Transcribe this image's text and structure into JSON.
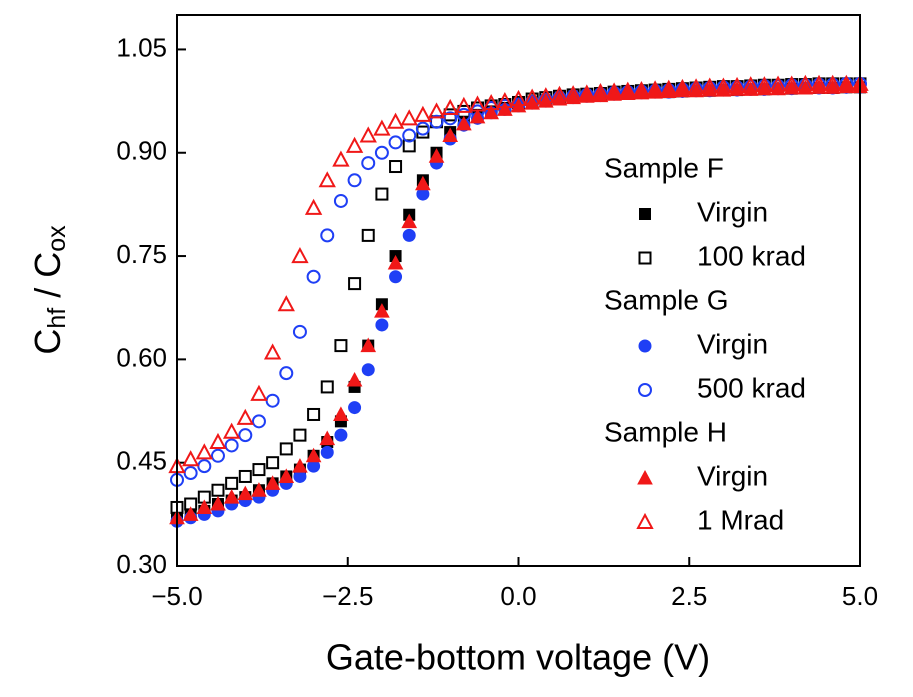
{
  "chart_data": {
    "type": "scatter",
    "xlabel": "Gate-bottom voltage (V)",
    "ylabel": [
      "C",
      "hf",
      " / C",
      "ox"
    ],
    "xlim": [
      -5,
      5
    ],
    "ylim": [
      0.3,
      1.1
    ],
    "xticks": [
      {
        "value": -5,
        "label": "−5.0"
      },
      {
        "value": -2.5,
        "label": "−2.5"
      },
      {
        "value": 0,
        "label": "0.0"
      },
      {
        "value": 2.5,
        "label": "2.5"
      },
      {
        "value": 5,
        "label": "5.0"
      }
    ],
    "yticks": [
      {
        "value": 0.3,
        "label": "0.30"
      },
      {
        "value": 0.45,
        "label": "0.45"
      },
      {
        "value": 0.6,
        "label": "0.60"
      },
      {
        "value": 0.75,
        "label": "0.75"
      },
      {
        "value": 0.9,
        "label": "0.90"
      },
      {
        "value": 1.05,
        "label": "1.05"
      }
    ],
    "x": [
      -5.0,
      -4.8,
      -4.6,
      -4.4,
      -4.2,
      -4.0,
      -3.8,
      -3.6,
      -3.4,
      -3.2,
      -3.0,
      -2.8,
      -2.6,
      -2.4,
      -2.2,
      -2.0,
      -1.8,
      -1.6,
      -1.4,
      -1.2,
      -1.0,
      -0.8,
      -0.6,
      -0.4,
      -0.2,
      0.0,
      0.2,
      0.4,
      0.6,
      0.8,
      1.0,
      1.2,
      1.4,
      1.6,
      1.8,
      2.0,
      2.2,
      2.4,
      2.6,
      2.8,
      3.0,
      3.2,
      3.4,
      3.6,
      3.8,
      4.0,
      4.2,
      4.4,
      4.6,
      4.8,
      5.0
    ],
    "groups": [
      {
        "title": "Sample F",
        "series": [
          {
            "name": "Virgin",
            "color": "#000000",
            "marker": "square",
            "filled": true,
            "values": [
              0.37,
              0.375,
              0.38,
              0.39,
              0.395,
              0.4,
              0.41,
              0.42,
              0.43,
              0.44,
              0.46,
              0.48,
              0.51,
              0.56,
              0.62,
              0.68,
              0.75,
              0.81,
              0.86,
              0.9,
              0.93,
              0.945,
              0.955,
              0.96,
              0.965,
              0.97,
              0.972,
              0.975,
              0.978,
              0.98,
              0.982,
              0.983,
              0.985,
              0.986,
              0.987,
              0.988,
              0.988,
              0.989,
              0.99,
              0.99,
              0.991,
              0.991,
              0.992,
              0.992,
              0.993,
              0.993,
              0.994,
              0.994,
              0.994,
              0.995,
              0.995
            ]
          },
          {
            "name": "100 krad",
            "color": "#000000",
            "marker": "square",
            "filled": false,
            "values": [
              0.385,
              0.39,
              0.4,
              0.41,
              0.42,
              0.43,
              0.44,
              0.45,
              0.47,
              0.49,
              0.52,
              0.56,
              0.62,
              0.71,
              0.78,
              0.84,
              0.88,
              0.91,
              0.93,
              0.945,
              0.955,
              0.96,
              0.965,
              0.968,
              0.97,
              0.973,
              0.978,
              0.98,
              0.982,
              0.984,
              0.985,
              0.986,
              0.988,
              0.989,
              0.99,
              0.991,
              0.992,
              0.993,
              0.994,
              0.995,
              0.996,
              0.996,
              0.997,
              0.998,
              0.998,
              0.999,
              0.999,
              1.0,
              1.0,
              1.0,
              1.0
            ]
          }
        ]
      },
      {
        "title": "Sample G",
        "series": [
          {
            "name": "Virgin",
            "color": "#1f3ff5",
            "marker": "circle",
            "filled": true,
            "values": [
              0.365,
              0.37,
              0.375,
              0.38,
              0.39,
              0.395,
              0.4,
              0.41,
              0.42,
              0.43,
              0.445,
              0.465,
              0.49,
              0.53,
              0.585,
              0.65,
              0.72,
              0.78,
              0.84,
              0.885,
              0.92,
              0.94,
              0.95,
              0.958,
              0.963,
              0.968,
              0.972,
              0.975,
              0.978,
              0.98,
              0.982,
              0.983,
              0.985,
              0.986,
              0.987,
              0.988,
              0.988,
              0.989,
              0.99,
              0.99,
              0.991,
              0.991,
              0.992,
              0.992,
              0.993,
              0.993,
              0.994,
              0.994,
              0.994,
              0.995,
              0.995
            ]
          },
          {
            "name": "500 krad",
            "color": "#1f3ff5",
            "marker": "circle",
            "filled": false,
            "values": [
              0.425,
              0.435,
              0.445,
              0.46,
              0.475,
              0.49,
              0.51,
              0.54,
              0.58,
              0.64,
              0.72,
              0.78,
              0.83,
              0.86,
              0.885,
              0.9,
              0.915,
              0.925,
              0.935,
              0.945,
              0.95,
              0.955,
              0.96,
              0.965,
              0.968,
              0.97,
              0.974,
              0.977,
              0.98,
              0.982,
              0.984,
              0.985,
              0.987,
              0.988,
              0.989,
              0.99,
              0.991,
              0.992,
              0.993,
              0.994,
              0.995,
              0.995,
              0.996,
              0.997,
              0.997,
              0.998,
              0.998,
              0.999,
              0.999,
              1.0,
              1.0
            ]
          }
        ]
      },
      {
        "title": "Sample H",
        "series": [
          {
            "name": "Virgin",
            "color": "#f01818",
            "marker": "triangle",
            "filled": true,
            "values": [
              0.37,
              0.375,
              0.385,
              0.39,
              0.4,
              0.405,
              0.41,
              0.42,
              0.43,
              0.445,
              0.46,
              0.485,
              0.52,
              0.57,
              0.62,
              0.67,
              0.74,
              0.8,
              0.855,
              0.895,
              0.925,
              0.942,
              0.952,
              0.958,
              0.963,
              0.968,
              0.972,
              0.975,
              0.978,
              0.98,
              0.982,
              0.983,
              0.985,
              0.986,
              0.987,
              0.988,
              0.989,
              0.99,
              0.99,
              0.991,
              0.991,
              0.992,
              0.992,
              0.993,
              0.993,
              0.994,
              0.994,
              0.995,
              0.995,
              0.996,
              0.996
            ]
          },
          {
            "name": "1 Mrad",
            "color": "#f01818",
            "marker": "triangle",
            "filled": false,
            "values": [
              0.445,
              0.455,
              0.465,
              0.48,
              0.495,
              0.515,
              0.55,
              0.61,
              0.68,
              0.75,
              0.82,
              0.86,
              0.89,
              0.91,
              0.925,
              0.935,
              0.945,
              0.95,
              0.955,
              0.96,
              0.965,
              0.968,
              0.97,
              0.972,
              0.975,
              0.978,
              0.98,
              0.982,
              0.984,
              0.985,
              0.986,
              0.988,
              0.989,
              0.99,
              0.991,
              0.992,
              0.993,
              0.994,
              0.995,
              0.996,
              0.996,
              0.997,
              0.998,
              0.998,
              0.999,
              0.999,
              1.0,
              1.0,
              1.0,
              1.0,
              1.0
            ]
          }
        ]
      }
    ]
  }
}
